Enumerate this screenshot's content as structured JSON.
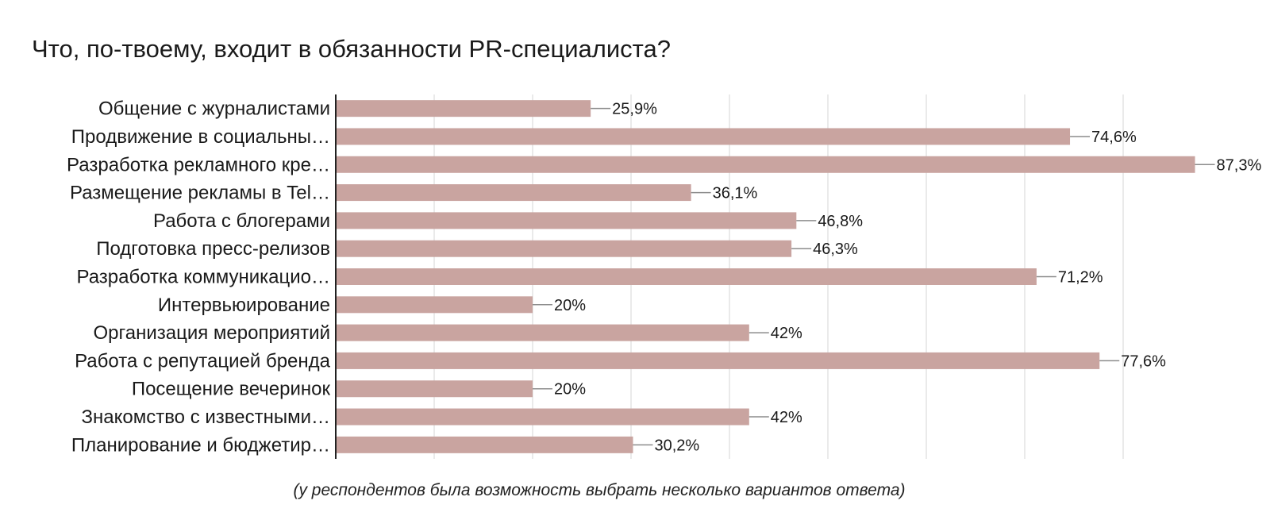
{
  "title": "Что, по-твоему, входит в обязанности PR-специалиста?",
  "footnote": "(у респондентов была возможность выбрать несколько вариантов ответа)",
  "colors": {
    "bar": "#c9a4a0",
    "axis": "#222222",
    "grid": "#e4e4e4",
    "leader": "#8c8c8c"
  },
  "chart_data": {
    "type": "bar",
    "orientation": "horizontal",
    "categories": [
      "Общение с журналистами",
      "Продвижение в социальны…",
      "Разработка рекламного кре…",
      "Размещение рекламы в Tel…",
      "Работа с блогерами",
      "Подготовка пресс-релизов",
      "Разработка коммуникацио…",
      "Интервьюирование",
      "Организация мероприятий",
      "Работа с репутацией бренда",
      "Посещение вечеринок",
      "Знакомство с известными…",
      "Планирование и бюджетир…"
    ],
    "values": [
      25.9,
      74.6,
      87.3,
      36.1,
      46.8,
      46.3,
      71.2,
      20,
      42,
      77.6,
      20,
      42,
      30.2
    ],
    "value_labels": [
      "25,9%",
      "74,6%",
      "87,3%",
      "36,1%",
      "46,8%",
      "46,3%",
      "71,2%",
      "20%",
      "42%",
      "77,6%",
      "20%",
      "42%",
      "30,2%"
    ],
    "xlim": [
      0,
      100
    ],
    "grid": true,
    "legend": "none",
    "xlabel": "",
    "ylabel": ""
  }
}
